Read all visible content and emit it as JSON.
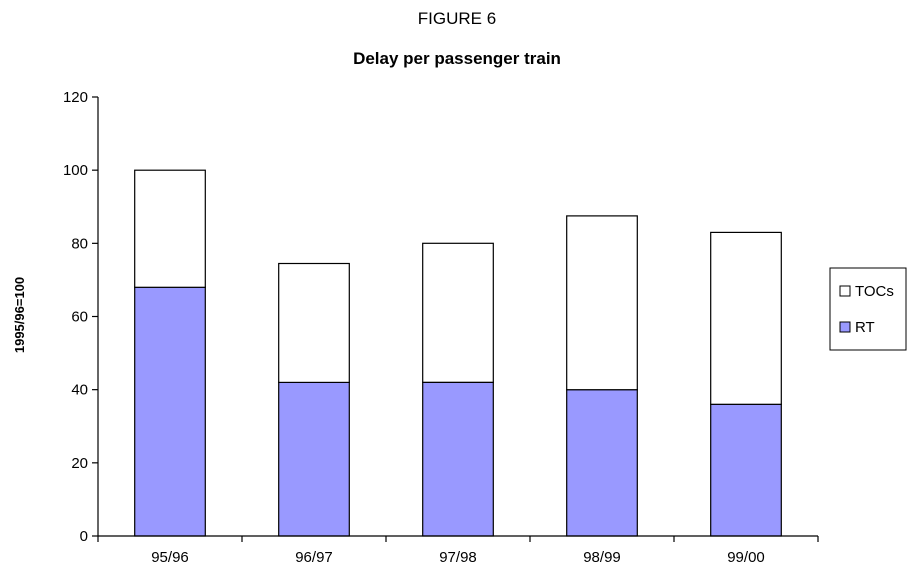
{
  "chart_data": {
    "type": "bar",
    "stacked": true,
    "title": "FIGURE 6",
    "subtitle": "Delay per passenger train",
    "xlabel": "",
    "ylabel": "1995/96=100",
    "ylim": [
      0,
      120
    ],
    "yticks": [
      0,
      20,
      40,
      60,
      80,
      100,
      120
    ],
    "categories": [
      "95/96",
      "96/97",
      "97/98",
      "98/99",
      "99/00"
    ],
    "series": [
      {
        "name": "RT",
        "values": [
          68,
          42,
          42,
          40,
          36
        ],
        "color": "#9999ff"
      },
      {
        "name": "TOCs",
        "values": [
          32,
          32.5,
          38,
          47.5,
          47
        ],
        "color": "#ffffff"
      }
    ],
    "legend_order": [
      "TOCs",
      "RT"
    ],
    "legend_position": "right",
    "grid": false
  }
}
